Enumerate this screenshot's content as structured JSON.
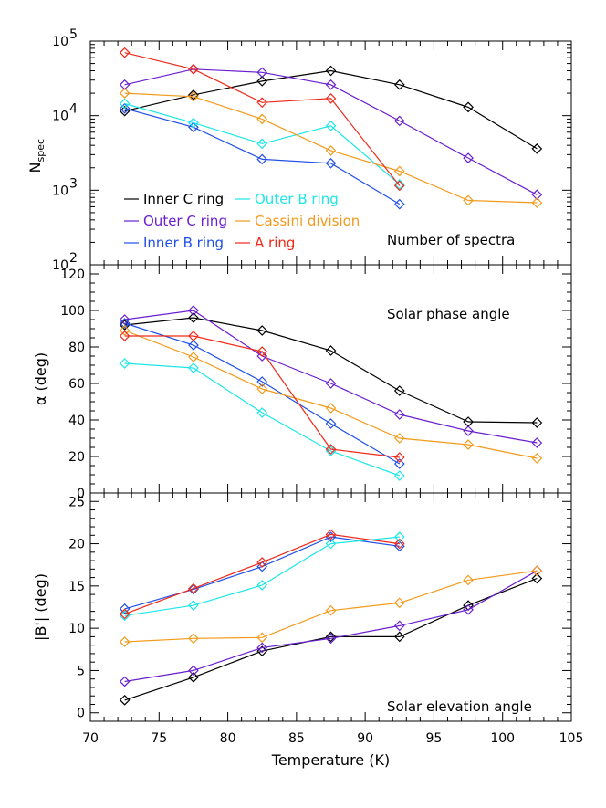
{
  "chart_data": {
    "type": "line",
    "x_label": "Temperature (K)",
    "x_ticks": [
      "70",
      "75",
      "80",
      "85",
      "90",
      "95",
      "100",
      "105"
    ],
    "xlim": [
      70,
      105
    ],
    "series_styles": [
      {
        "name": "Inner C ring",
        "color": "#000000"
      },
      {
        "name": "Outer C ring",
        "color": "#6a1fd0"
      },
      {
        "name": "Inner B ring",
        "color": "#1f4fe8"
      },
      {
        "name": "Outer B ring",
        "color": "#1de6e6"
      },
      {
        "name": "Cassini division",
        "color": "#f39a1c"
      },
      {
        "name": "A ring",
        "color": "#ee2a1b"
      }
    ],
    "panels": [
      {
        "id": "nspec",
        "y_label": "N",
        "y_label_sub": "spec",
        "y_scale": "log",
        "ylim": [
          100,
          100000
        ],
        "y_ticks": [
          {
            "value": 100,
            "base": "10",
            "exp": "2"
          },
          {
            "value": 1000,
            "base": "10",
            "exp": "3"
          },
          {
            "value": 10000,
            "base": "10",
            "exp": "4"
          },
          {
            "value": 100000,
            "base": "10",
            "exp": "5"
          }
        ],
        "panel_label": "Number of spectra",
        "series": [
          {
            "name": "Inner C ring",
            "x": [
              72.5,
              77.5,
              82.5,
              87.5,
              92.5,
              97.5,
              102.5
            ],
            "y": [
              11500,
              19000,
              29000,
              40000,
              26000,
              13000,
              3600
            ]
          },
          {
            "name": "Outer C ring",
            "x": [
              72.5,
              77.5,
              82.5,
              87.5,
              92.5,
              97.5,
              102.5
            ],
            "y": [
              26000,
              42000,
              38000,
              26000,
              8500,
              2700,
              870
            ]
          },
          {
            "name": "Inner B ring",
            "x": [
              72.5,
              77.5,
              82.5,
              87.5,
              92.5
            ],
            "y": [
              12500,
              7000,
              2600,
              2300,
              650
            ]
          },
          {
            "name": "Outer B ring",
            "x": [
              72.5,
              77.5,
              82.5,
              87.5,
              92.5
            ],
            "y": [
              14500,
              8000,
              4200,
              7300,
              1200
            ]
          },
          {
            "name": "Cassini division",
            "x": [
              72.5,
              77.5,
              82.5,
              87.5,
              92.5,
              97.5,
              102.5
            ],
            "y": [
              20000,
              18000,
              9000,
              3400,
              1800,
              730,
              680
            ]
          },
          {
            "name": "A ring",
            "x": [
              72.5,
              77.5,
              82.5,
              87.5,
              92.5
            ],
            "y": [
              70000,
              42000,
              15000,
              17000,
              1150
            ]
          }
        ]
      },
      {
        "id": "alpha",
        "y_label": "α (deg)",
        "y_scale": "linear",
        "ylim": [
          0,
          125
        ],
        "y_ticks": [
          "0",
          "20",
          "40",
          "60",
          "80",
          "100",
          "120"
        ],
        "panel_label": "Solar phase angle",
        "series": [
          {
            "name": "Inner C ring",
            "x": [
              72.5,
              77.5,
              82.5,
              87.5,
              92.5,
              97.5,
              102.5
            ],
            "y": [
              92,
              96,
              89,
              78,
              56,
              39,
              38.5
            ]
          },
          {
            "name": "Outer C ring",
            "x": [
              72.5,
              77.5,
              82.5,
              87.5,
              92.5,
              97.5,
              102.5
            ],
            "y": [
              95,
              100,
              75,
              60,
              43,
              34,
              27.5
            ]
          },
          {
            "name": "Inner B ring",
            "x": [
              72.5,
              77.5,
              82.5,
              87.5,
              92.5
            ],
            "y": [
              93,
              81,
              61,
              38,
              16
            ]
          },
          {
            "name": "Outer B ring",
            "x": [
              72.5,
              77.5,
              82.5,
              87.5,
              92.5
            ],
            "y": [
              71,
              68.5,
              44,
              23,
              9.5
            ]
          },
          {
            "name": "Cassini division",
            "x": [
              72.5,
              77.5,
              82.5,
              87.5,
              92.5,
              97.5,
              102.5
            ],
            "y": [
              89,
              74.5,
              57,
              46.5,
              30,
              26.5,
              19
            ]
          },
          {
            "name": "A ring",
            "x": [
              72.5,
              77.5,
              82.5,
              87.5,
              92.5
            ],
            "y": [
              86,
              86,
              77.5,
              24,
              19.5
            ]
          }
        ]
      },
      {
        "id": "elev",
        "y_label": "|B'| (deg)",
        "y_scale": "linear",
        "ylim": [
          -1,
          26
        ],
        "y_ticks": [
          "0",
          "5",
          "10",
          "15",
          "20",
          "25"
        ],
        "panel_label": "Solar elevation angle",
        "series": [
          {
            "name": "Inner C ring",
            "x": [
              72.5,
              77.5,
              82.5,
              87.5,
              92.5,
              97.5,
              102.5
            ],
            "y": [
              1.5,
              4.2,
              7.3,
              9.0,
              9.0,
              12.7,
              15.9
            ]
          },
          {
            "name": "Outer C ring",
            "x": [
              72.5,
              77.5,
              82.5,
              87.5,
              92.5,
              97.5,
              102.5
            ],
            "y": [
              3.7,
              5.0,
              7.7,
              8.8,
              10.3,
              12.2,
              16.8
            ]
          },
          {
            "name": "Inner B ring",
            "x": [
              72.5,
              77.5,
              82.5,
              87.5,
              92.5
            ],
            "y": [
              12.3,
              14.6,
              17.3,
              20.8,
              19.7
            ]
          },
          {
            "name": "Outer B ring",
            "x": [
              72.5,
              77.5,
              82.5,
              87.5,
              92.5
            ],
            "y": [
              11.5,
              12.7,
              15.1,
              20.0,
              20.8
            ]
          },
          {
            "name": "Cassini division",
            "x": [
              72.5,
              77.5,
              82.5,
              87.5,
              92.5,
              97.5,
              102.5
            ],
            "y": [
              8.4,
              8.8,
              8.9,
              12.1,
              13.0,
              15.7,
              16.8
            ]
          },
          {
            "name": "A ring",
            "x": [
              72.5,
              77.5,
              82.5,
              87.5,
              92.5
            ],
            "y": [
              11.7,
              14.7,
              17.8,
              21.1,
              20.0
            ]
          }
        ]
      }
    ]
  }
}
